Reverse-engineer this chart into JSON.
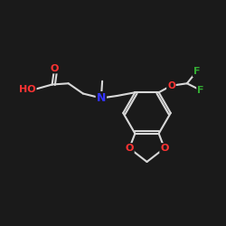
{
  "background_color": "#1a1a1a",
  "bond_color": "#d8d8d8",
  "bond_width": 1.5,
  "atom_colors": {
    "O": "#ff3333",
    "N": "#3333ff",
    "F": "#33aa33",
    "C": "#d8d8d8"
  },
  "font_size_atom": 8.5,
  "figsize": [
    2.5,
    2.5
  ],
  "dpi": 100,
  "xlim": [
    0,
    10
  ],
  "ylim": [
    0,
    10
  ]
}
